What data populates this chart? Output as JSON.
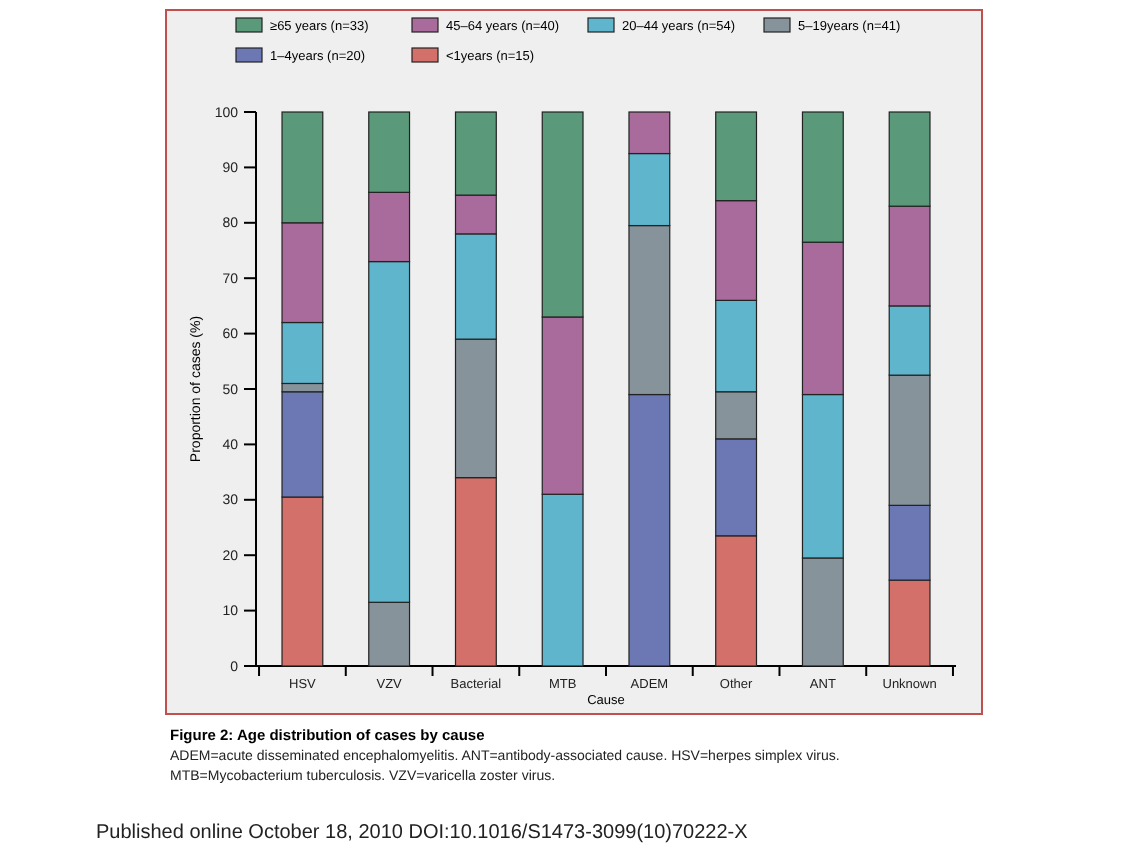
{
  "chart_data": {
    "type": "bar",
    "stacked": true,
    "title": "Figure 2: Age distribution of cases by cause",
    "xlabel": "Cause",
    "ylabel": "Proportion of cases (%)",
    "categories": [
      "HSV",
      "VZV",
      "Bacterial",
      "MTB",
      "ADEM",
      "Other",
      "ANT",
      "Unknown"
    ],
    "series": [
      {
        "name": "<1years (n=15)",
        "color": "#d4706a",
        "values": [
          30.5,
          0,
          34,
          0,
          0,
          23.5,
          0,
          15.5
        ]
      },
      {
        "name": "1–4years (n=20)",
        "color": "#6b78b4",
        "values": [
          19,
          0,
          0,
          0,
          49,
          17.5,
          0,
          13.5
        ]
      },
      {
        "name": "5–19years (n=41)",
        "color": "#87939a",
        "values": [
          1.5,
          11.5,
          25,
          0,
          30.5,
          8.5,
          19.5,
          23.5
        ]
      },
      {
        "name": "20–44 years (n=54)",
        "color": "#5fb5cc",
        "values": [
          11,
          61.5,
          19,
          31,
          13,
          16.5,
          29.5,
          12.5
        ]
      },
      {
        "name": "45–64 years (n=40)",
        "color": "#a86b9b",
        "values": [
          18,
          12.5,
          7,
          32,
          7.5,
          18,
          27.5,
          18
        ]
      },
      {
        "name": "≥65 years (n=33)",
        "color": "#5a9a7a",
        "values": [
          20,
          14.5,
          15,
          37,
          0,
          16,
          23.5,
          17
        ]
      }
    ],
    "ylim": [
      0,
      100
    ],
    "yticks": [
      0,
      10,
      20,
      30,
      40,
      50,
      60,
      70,
      80,
      90,
      100
    ],
    "grid": false,
    "legend": "top",
    "annotations": [
      "ADEM=acute disseminated encephalomyelitis. ANT=antibody-associated cause. HSV=herpes simplex virus.",
      "MTB=Mycobacterium tuberculosis. VZV=varicella zoster virus.",
      "Published online October 18, 2010 DOI:10.1016/S1473-3099(10)70222-X"
    ]
  }
}
